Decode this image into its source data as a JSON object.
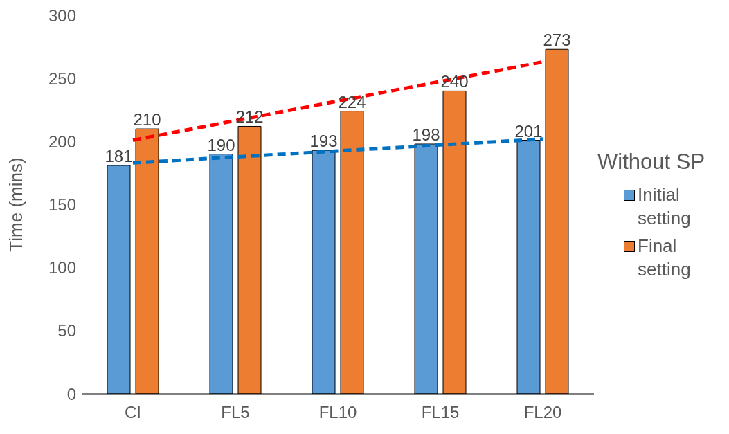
{
  "chart_data": {
    "type": "bar",
    "ylabel": "Time (mins)",
    "legend_title": "Without SP",
    "categories": [
      "CI",
      "FL5",
      "FL10",
      "FL15",
      "FL20"
    ],
    "series": [
      {
        "name": "Initial setting",
        "color": "#5b9bd5",
        "values": [
          181,
          190,
          193,
          198,
          201
        ],
        "value_labels": [
          "181",
          "190",
          "193",
          "198",
          "201"
        ]
      },
      {
        "name": "Final setting",
        "color": "#ed7d31",
        "values": [
          210,
          212,
          224,
          240,
          273
        ],
        "value_labels": [
          "210",
          "212",
          "224",
          "240",
          "273"
        ]
      },
      {
        "type": "line",
        "x": [
          "CI",
          "FL20"
        ],
        "values": [
          201,
          263
        ],
        "color": "#ff0000",
        "line_style": "dashed"
      },
      {
        "type": "line",
        "x": [
          "CI",
          "FL20"
        ],
        "values": [
          183,
          202
        ],
        "color": "#0070c0",
        "line_style": "dashed"
      }
    ],
    "ylim": [
      0,
      300
    ],
    "yticks": [
      0,
      50,
      100,
      150,
      200,
      250,
      300
    ],
    "grid": false,
    "legend": "right"
  }
}
